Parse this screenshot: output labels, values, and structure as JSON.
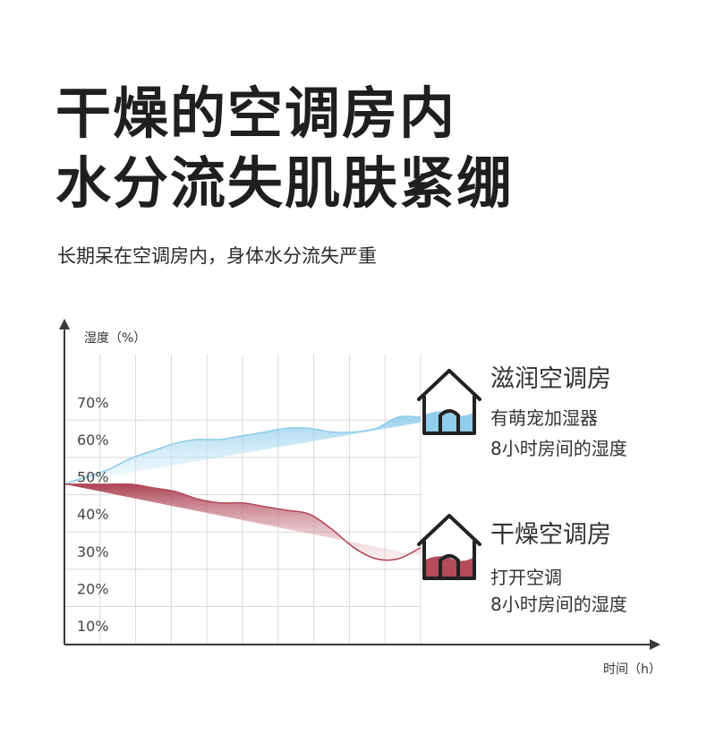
{
  "headline": {
    "line1": "干燥的空调房内",
    "line2": "水分流失肌肤紧绷"
  },
  "subtitle": "长期呆在空调房内，身体水分流失严重",
  "chart_data": {
    "type": "area",
    "ylabel": "湿度（%）",
    "xlabel": "时间（h）",
    "y_ticks": [
      "70%",
      "60%",
      "50%",
      "40%",
      "30%",
      "20%",
      "10%"
    ],
    "ylim": [
      5,
      90
    ],
    "grid": true,
    "series": [
      {
        "name": "滋润空调房",
        "color": "#8fcdea",
        "fill_color": "#bfe3f3",
        "x": [
          0,
          0.5,
          1,
          1.5,
          2,
          2.5,
          3,
          3.5,
          4,
          4.5,
          5,
          5.5,
          6,
          6.5,
          7,
          7.5,
          8
        ],
        "y": [
          48,
          50,
          52,
          55,
          57,
          59,
          60,
          60,
          61,
          62,
          63,
          63,
          62,
          62,
          63,
          66,
          66
        ]
      },
      {
        "name": "干燥空调房",
        "color": "#b34b5b",
        "fill_color": "#b34b5b",
        "x": [
          0,
          0.5,
          1,
          1.5,
          2,
          2.5,
          3,
          3.5,
          4,
          4.5,
          5,
          5.5,
          6,
          6.5,
          7,
          7.5,
          8
        ],
        "y": [
          48,
          48,
          48,
          48,
          47,
          46,
          44,
          43,
          43,
          42,
          41,
          40,
          36,
          31,
          28,
          28,
          31
        ]
      }
    ]
  },
  "rooms": [
    {
      "title": "滋润空调房",
      "desc1": "有萌宠加湿器",
      "desc2": "8小时房间的湿度",
      "icon": "house-icon",
      "fill_color": "#8fcdea"
    },
    {
      "title": "干燥空调房",
      "desc1": "打开空调",
      "desc2": "8小时房间的湿度",
      "icon": "house-icon",
      "fill_color": "#b34b5b"
    }
  ]
}
